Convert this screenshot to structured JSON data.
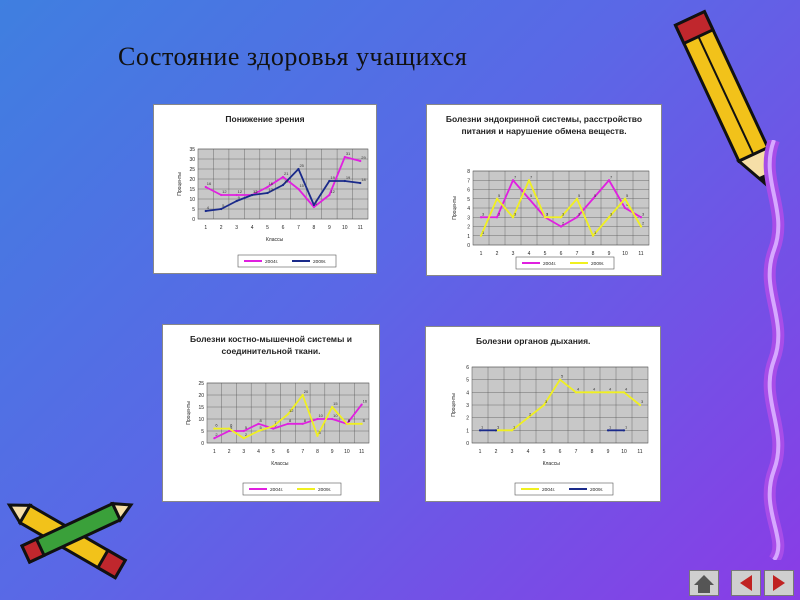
{
  "slide": {
    "title": "Состояние здоровья учащихся"
  },
  "charts_meta": {
    "ylabel": "Проценты",
    "xlabel": "Классы",
    "s1": "2004г.",
    "s2": "2009г.",
    "c1": "#e020e0",
    "c2": "#1a2a8a",
    "c3": "#f0f020"
  },
  "chart_data": [
    {
      "type": "line",
      "title": "Понижение зрения",
      "xlabel": "Классы",
      "ylabel": "Проценты",
      "categories": [
        "1",
        "2",
        "3",
        "4",
        "5",
        "6",
        "7",
        "8",
        "9",
        "10",
        "11"
      ],
      "ylim": [
        0,
        35
      ],
      "yticks": [
        0,
        5,
        10,
        15,
        20,
        25,
        30,
        35
      ],
      "legend_position": "bottom",
      "series": [
        {
          "name": "2004г.",
          "color": "#e020e0",
          "values": [
            16,
            12,
            12,
            12,
            16,
            21,
            15,
            6,
            12,
            31,
            29
          ]
        },
        {
          "name": "2009г.",
          "color": "#1a2a8a",
          "values": [
            4,
            5,
            9,
            12,
            13,
            17,
            25,
            7,
            19,
            19,
            18
          ]
        }
      ]
    },
    {
      "type": "line",
      "title": "Болезни эндокринной системы, расстройство питания и нарушение обмена веществ.",
      "xlabel": "Классы",
      "ylabel": "Проценты",
      "categories": [
        "1",
        "2",
        "3",
        "4",
        "5",
        "6",
        "7",
        "8",
        "9",
        "10",
        "11"
      ],
      "ylim": [
        0,
        8
      ],
      "yticks": [
        0,
        1,
        2,
        3,
        4,
        5,
        6,
        7,
        8
      ],
      "legend_position": "bottom",
      "series": [
        {
          "name": "2004г.",
          "color": "#e020e0",
          "values": [
            3,
            3,
            7,
            5,
            3,
            2,
            3,
            5,
            7,
            4,
            3
          ]
        },
        {
          "name": "2009г.",
          "color": "#f0f020",
          "values": [
            1,
            5,
            3,
            7,
            3,
            3,
            5,
            1,
            3,
            5,
            2
          ]
        }
      ]
    },
    {
      "type": "line",
      "title": "Болезни костно-мышечной системы и соединительной ткани.",
      "xlabel": "Классы",
      "ylabel": "Проценты",
      "categories": [
        "1",
        "2",
        "3",
        "4",
        "5",
        "6",
        "7",
        "8",
        "9",
        "10",
        "11"
      ],
      "ylim": [
        0,
        25
      ],
      "yticks": [
        0,
        5,
        10,
        15,
        20,
        25
      ],
      "legend_position": "bottom",
      "series": [
        {
          "name": "2004г.",
          "color": "#e020e0",
          "values": [
            2,
            5,
            5,
            8,
            6,
            8,
            8,
            10,
            10,
            8,
            16
          ]
        },
        {
          "name": "2009г.",
          "color": "#f0f020",
          "values": [
            6,
            6,
            2,
            5,
            7,
            12,
            20,
            3,
            15,
            8,
            8
          ]
        }
      ]
    },
    {
      "type": "line",
      "title": "Болезни органов дыхания.",
      "xlabel": "Классы",
      "ylabel": "Проценты",
      "categories": [
        "1",
        "2",
        "3",
        "4",
        "5",
        "6",
        "7",
        "8",
        "9",
        "10",
        "11"
      ],
      "ylim": [
        0,
        6
      ],
      "yticks": [
        0,
        1,
        2,
        3,
        4,
        5,
        6
      ],
      "legend_position": "bottom",
      "series": [
        {
          "name": "2004г.",
          "color": "#f0f020",
          "values": [
            null,
            1,
            1,
            2,
            3,
            5,
            4,
            4,
            4,
            4,
            3
          ]
        },
        {
          "name": "2009г.",
          "color": "#1a2a8a",
          "values": [
            1,
            1,
            null,
            null,
            null,
            null,
            null,
            null,
            1,
            1,
            null
          ]
        }
      ]
    }
  ]
}
